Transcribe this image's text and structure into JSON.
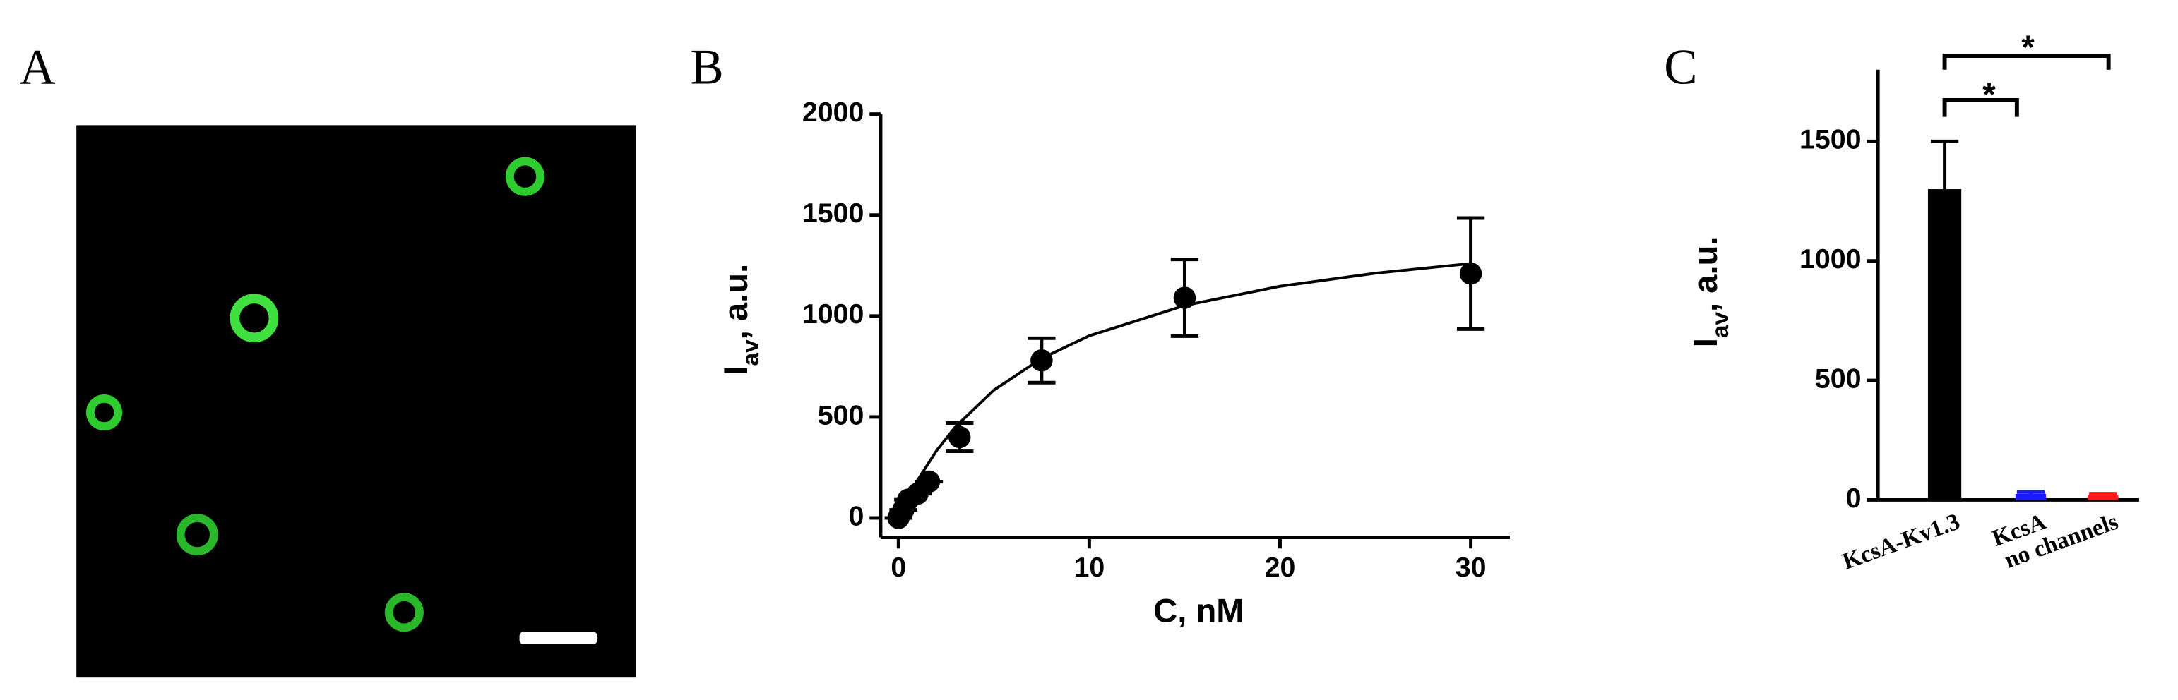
{
  "panel_a": {
    "label": "A"
  },
  "chart_data": [
    {
      "type": "scatter",
      "panel_label": "B",
      "xlabel": "C, nM",
      "ylabel": {
        "main": "I",
        "sub": "av",
        "rest": ", a.u."
      },
      "x": [
        0,
        0.25,
        0.5,
        1,
        1.6,
        3.2,
        7.5,
        15,
        30
      ],
      "values": [
        0,
        40,
        90,
        120,
        180,
        400,
        780,
        1090,
        1210
      ],
      "errors": [
        0,
        0,
        0,
        0,
        0,
        70,
        110,
        190,
        275
      ],
      "color": "#000000",
      "fit": {
        "x": [
          0,
          1,
          2,
          3,
          5,
          7.5,
          10,
          15,
          20,
          25,
          30
        ],
        "values": [
          0,
          187,
          334,
          453,
          633,
          790,
          902,
          1052,
          1147,
          1212,
          1260
        ]
      },
      "xlim": [
        -0.5,
        32.05
      ],
      "xticks": [
        0,
        10,
        20,
        30
      ],
      "ylim": [
        0,
        2000
      ],
      "yticks": [
        0,
        500,
        1000,
        1500,
        2000
      ]
    },
    {
      "type": "bar",
      "panel_label": "C",
      "ylabel": {
        "main": "I",
        "sub": "av",
        "rest": ", a.u."
      },
      "categories": [
        "KcsA-Kv1.3",
        "KcsA",
        "no channels"
      ],
      "values": [
        1300,
        25,
        20
      ],
      "errors": [
        200,
        8,
        6
      ],
      "colors": [
        "#000000",
        "#1a1aff",
        "#ff1a1a"
      ],
      "ylim": [
        0,
        1800
      ],
      "yticks": [
        0,
        500,
        1000,
        1500
      ],
      "annotations": [
        "*",
        "*"
      ]
    }
  ]
}
